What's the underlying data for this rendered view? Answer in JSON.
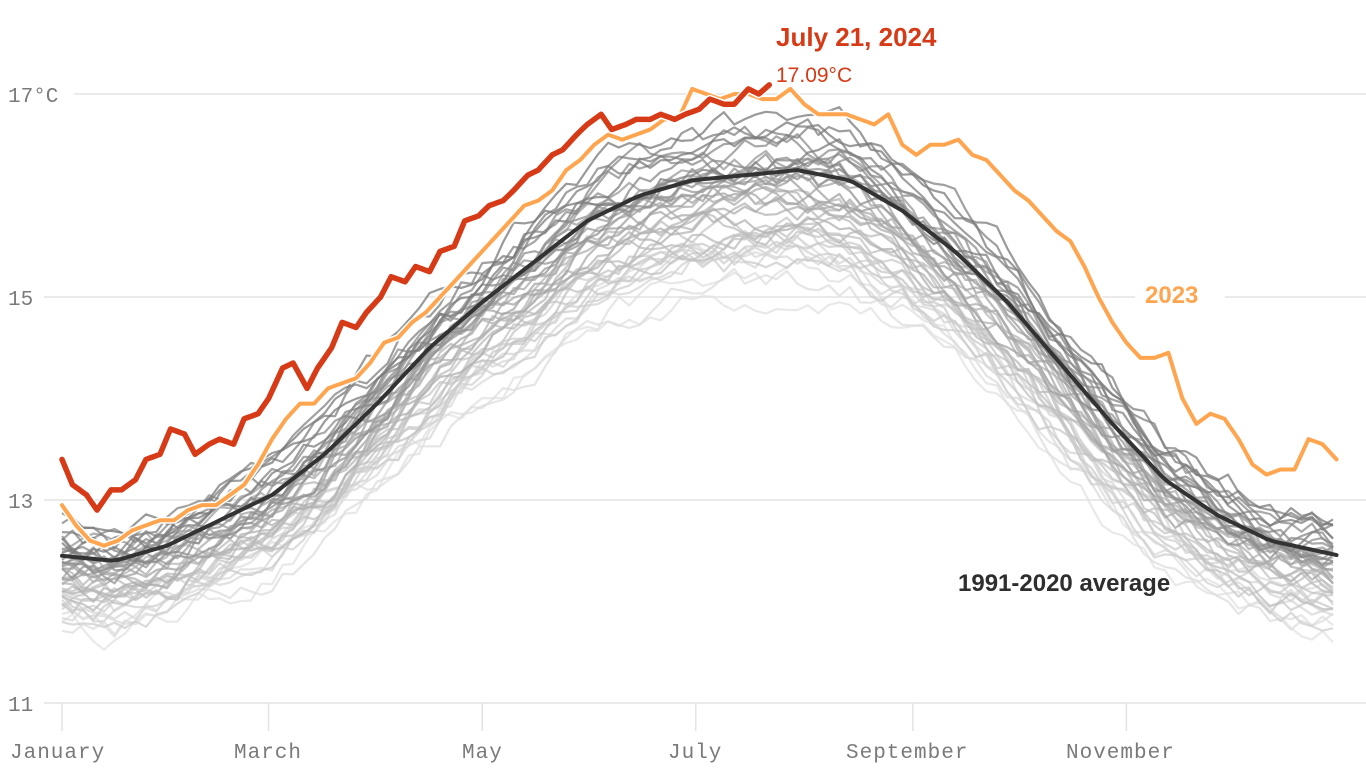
{
  "chart_data": {
    "type": "line",
    "title": "",
    "xlabel": "",
    "ylabel": "",
    "ylim": [
      11,
      17.3
    ],
    "xlim_days": [
      0,
      365
    ],
    "y_ticks": [
      {
        "value": 17,
        "label": "17°C"
      },
      {
        "value": 15,
        "label": "15"
      },
      {
        "value": 13,
        "label": "13"
      },
      {
        "value": 11,
        "label": "11"
      }
    ],
    "x_ticks": [
      {
        "day": 0,
        "label": "January"
      },
      {
        "day": 59,
        "label": "March"
      },
      {
        "day": 120,
        "label": "May"
      },
      {
        "day": 181,
        "label": "July"
      },
      {
        "day": 243,
        "label": "September"
      },
      {
        "day": 304,
        "label": "November"
      }
    ],
    "grid": true,
    "colors": {
      "y2024": "#d63a16",
      "y2023": "#ffa54f",
      "average": "#333333",
      "history": "#8a8a8a",
      "grid": "#e3e3e3"
    },
    "annotation": {
      "date": "July 21, 2024",
      "value": "17.09°C"
    },
    "labels": {
      "y2023": "2023",
      "average": "1991-2020 average"
    },
    "series": [
      {
        "name": "2024",
        "x": [
          0,
          3,
          7,
          10,
          14,
          17,
          21,
          24,
          28,
          31,
          35,
          38,
          42,
          45,
          49,
          52,
          56,
          59,
          63,
          66,
          70,
          73,
          77,
          80,
          84,
          87,
          91,
          94,
          98,
          101,
          105,
          108,
          112,
          115,
          119,
          122,
          126,
          129,
          133,
          136,
          140,
          143,
          147,
          150,
          154,
          157,
          161,
          164,
          168,
          171,
          175,
          178,
          182,
          185,
          189,
          192,
          196,
          199,
          202
        ],
        "values": [
          13.4,
          13.15,
          13.05,
          12.9,
          13.1,
          13.1,
          13.2,
          13.4,
          13.45,
          13.7,
          13.65,
          13.45,
          13.55,
          13.6,
          13.55,
          13.8,
          13.85,
          14.0,
          14.3,
          14.35,
          14.1,
          14.3,
          14.5,
          14.75,
          14.7,
          14.85,
          15.0,
          15.2,
          15.15,
          15.3,
          15.25,
          15.45,
          15.5,
          15.75,
          15.8,
          15.9,
          15.95,
          16.05,
          16.2,
          16.25,
          16.4,
          16.45,
          16.6,
          16.7,
          16.8,
          16.65,
          16.7,
          16.75,
          16.75,
          16.8,
          16.75,
          16.8,
          16.85,
          16.95,
          16.9,
          16.9,
          17.05,
          17.0,
          17.09
        ]
      },
      {
        "name": "2023",
        "x": [
          0,
          4,
          8,
          12,
          16,
          20,
          24,
          28,
          32,
          36,
          40,
          44,
          48,
          52,
          56,
          60,
          64,
          68,
          72,
          76,
          80,
          84,
          88,
          92,
          96,
          100,
          104,
          108,
          112,
          116,
          120,
          124,
          128,
          132,
          136,
          140,
          144,
          148,
          152,
          156,
          160,
          164,
          168,
          172,
          176,
          180,
          184,
          188,
          192,
          196,
          200,
          204,
          208,
          212,
          216,
          220,
          224,
          228,
          232,
          236,
          240,
          244,
          248,
          252,
          256,
          260,
          264,
          268,
          272,
          276,
          280,
          284,
          288,
          292,
          296,
          300,
          304,
          308,
          312,
          316,
          320,
          324,
          328,
          332,
          336,
          340,
          344,
          348,
          352,
          356,
          360,
          364
        ],
        "values": [
          12.95,
          12.75,
          12.6,
          12.55,
          12.6,
          12.7,
          12.75,
          12.8,
          12.8,
          12.9,
          12.95,
          12.95,
          13.05,
          13.15,
          13.35,
          13.6,
          13.8,
          13.95,
          13.95,
          14.1,
          14.15,
          14.2,
          14.35,
          14.55,
          14.6,
          14.75,
          14.85,
          15.0,
          15.15,
          15.3,
          15.45,
          15.6,
          15.75,
          15.9,
          15.95,
          16.05,
          16.25,
          16.35,
          16.5,
          16.6,
          16.55,
          16.6,
          16.65,
          16.75,
          16.75,
          17.05,
          17.0,
          16.95,
          17.0,
          17.0,
          16.95,
          16.95,
          17.05,
          16.9,
          16.8,
          16.8,
          16.8,
          16.75,
          16.7,
          16.8,
          16.5,
          16.4,
          16.5,
          16.5,
          16.55,
          16.4,
          16.35,
          16.2,
          16.05,
          15.95,
          15.8,
          15.65,
          15.55,
          15.3,
          15.0,
          14.75,
          14.55,
          14.4,
          14.4,
          14.45,
          14.0,
          13.75,
          13.85,
          13.8,
          13.6,
          13.35,
          13.25,
          13.3,
          13.3,
          13.6,
          13.55,
          13.4
        ]
      },
      {
        "name": "1991-2020 average",
        "x": [
          0,
          15,
          30,
          45,
          60,
          75,
          90,
          105,
          120,
          135,
          150,
          165,
          180,
          195,
          210,
          225,
          240,
          255,
          270,
          285,
          300,
          315,
          330,
          345,
          365
        ],
        "values": [
          12.45,
          12.4,
          12.55,
          12.8,
          13.05,
          13.45,
          13.95,
          14.5,
          14.95,
          15.35,
          15.75,
          16.0,
          16.15,
          16.2,
          16.25,
          16.15,
          15.85,
          15.45,
          14.95,
          14.35,
          13.75,
          13.2,
          12.85,
          12.6,
          12.45
        ]
      }
    ]
  }
}
